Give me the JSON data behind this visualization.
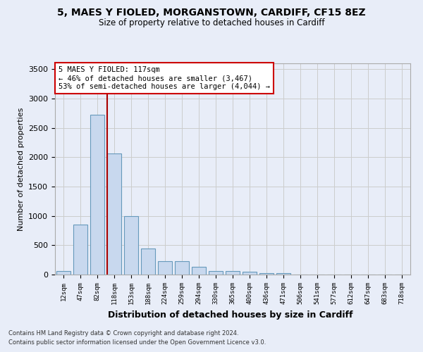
{
  "title_line1": "5, MAES Y FIOLED, MORGANSTOWN, CARDIFF, CF15 8EZ",
  "title_line2": "Size of property relative to detached houses in Cardiff",
  "xlabel": "Distribution of detached houses by size in Cardiff",
  "ylabel": "Number of detached properties",
  "bin_labels": [
    "12sqm",
    "47sqm",
    "82sqm",
    "118sqm",
    "153sqm",
    "188sqm",
    "224sqm",
    "259sqm",
    "294sqm",
    "330sqm",
    "365sqm",
    "400sqm",
    "436sqm",
    "471sqm",
    "506sqm",
    "541sqm",
    "577sqm",
    "612sqm",
    "647sqm",
    "683sqm",
    "718sqm"
  ],
  "bar_values": [
    60,
    850,
    2720,
    2060,
    1000,
    450,
    225,
    225,
    135,
    60,
    55,
    45,
    30,
    20,
    0,
    0,
    0,
    0,
    0,
    0,
    0
  ],
  "bar_color": "#c8d8ee",
  "bar_edge_color": "#6699bb",
  "grid_color": "#cccccc",
  "bg_color": "#e8edf8",
  "vline_color": "#aa0000",
  "vline_x": 2.575,
  "annotation_line1": "5 MAES Y FIOLED: 117sqm",
  "annotation_line2": "← 46% of detached houses are smaller (3,467)",
  "annotation_line3": "53% of semi-detached houses are larger (4,044) →",
  "annotation_box_color": "#ffffff",
  "annotation_box_edge": "#cc0000",
  "footnote1": "Contains HM Land Registry data © Crown copyright and database right 2024.",
  "footnote2": "Contains public sector information licensed under the Open Government Licence v3.0.",
  "ylim_max": 3600,
  "yticks": [
    0,
    500,
    1000,
    1500,
    2000,
    2500,
    3000,
    3500
  ]
}
